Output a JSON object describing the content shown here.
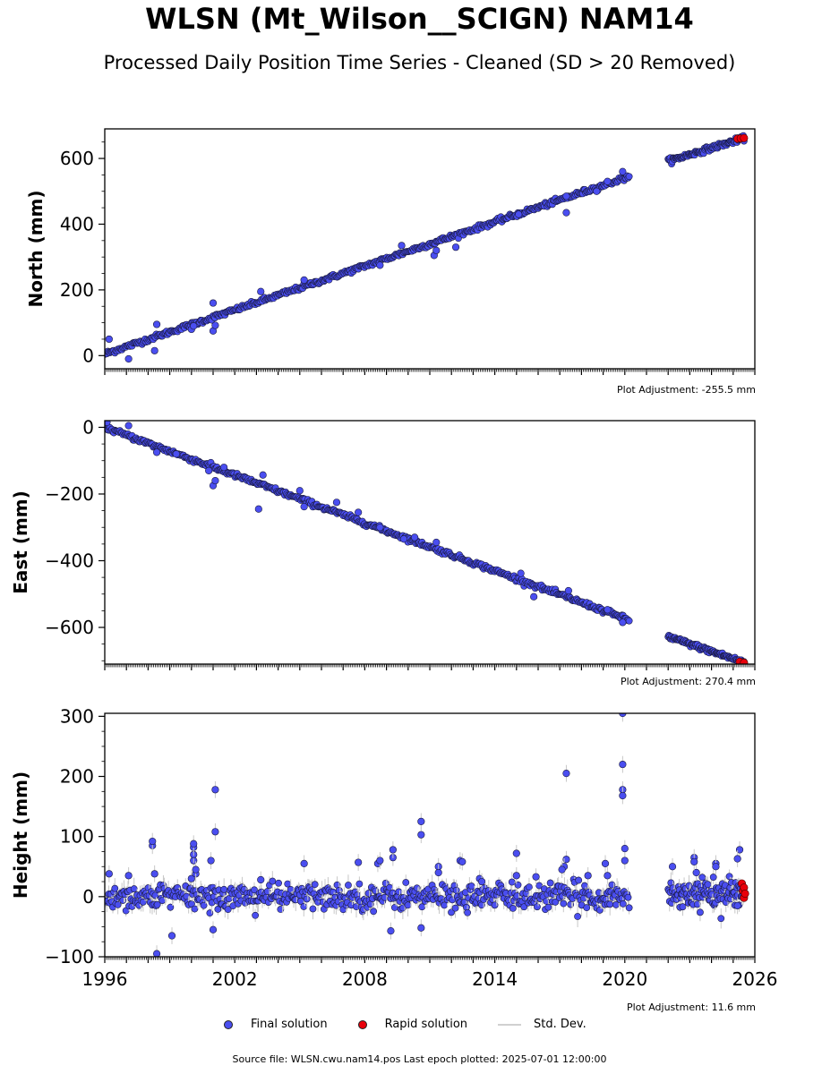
{
  "title": "WLSN (Mt_Wilson__SCIGN) NAM14",
  "subtitle": "Processed Daily Position Time Series - Cleaned (SD > 20 Removed)",
  "legend": {
    "final": "Final solution",
    "rapid": "Rapid solution",
    "std": "Std. Dev."
  },
  "colors": {
    "final": "#4a4ef0",
    "rapid": "#e8000b",
    "edge": "#1a1a40",
    "std": "#c8c8c8"
  },
  "source_text": "Source file: WLSN.cwu.nam14.pos  Last epoch plotted: 2025-07-01 12:00:00",
  "chart_data": [
    {
      "type": "scatter",
      "ylabel": "North (mm)",
      "adjustment": "Plot Adjustment: -255.5 mm",
      "xlim": [
        1996,
        2026
      ],
      "ylim": [
        -40,
        690
      ],
      "yticks": [
        0,
        200,
        400,
        600
      ],
      "xticks": [],
      "trend": {
        "start": [
          1996,
          5
        ],
        "end": [
          2020.2,
          545
        ],
        "gap": [
          2020.2,
          2022.0
        ],
        "start2": [
          2022.0,
          592
        ],
        "end2": [
          2025.5,
          662
        ]
      },
      "outliers": [
        [
          1996.2,
          50
        ],
        [
          1997.1,
          -10
        ],
        [
          1998.3,
          15
        ],
        [
          1998.4,
          95
        ],
        [
          2000.0,
          80
        ],
        [
          2000.1,
          90
        ],
        [
          2001.0,
          75
        ],
        [
          2001.1,
          92
        ],
        [
          2001.0,
          160
        ],
        [
          2003.2,
          195
        ],
        [
          2005.2,
          230
        ],
        [
          2008.7,
          275
        ],
        [
          2009.7,
          335
        ],
        [
          2011.2,
          305
        ],
        [
          2011.3,
          320
        ],
        [
          2012.2,
          330
        ],
        [
          2015.1,
          430
        ],
        [
          2017.3,
          435
        ],
        [
          2017.3,
          485
        ],
        [
          2018.7,
          500
        ],
        [
          2019.2,
          530
        ],
        [
          2019.9,
          560
        ]
      ],
      "rapid": [
        [
          2025.2,
          660
        ],
        [
          2025.35,
          661
        ],
        [
          2025.5,
          662
        ]
      ]
    },
    {
      "type": "scatter",
      "ylabel": "East (mm)",
      "adjustment": "Plot Adjustment: 270.4 mm",
      "xlim": [
        1996,
        2026
      ],
      "ylim": [
        -710,
        20
      ],
      "yticks": [
        0,
        -200,
        -400,
        -600
      ],
      "xticks": [],
      "trend": {
        "start": [
          1996,
          0
        ],
        "end": [
          2020.2,
          -578
        ],
        "gap": [
          2020.2,
          2022.0
        ],
        "start2": [
          2022.0,
          -628
        ],
        "end2": [
          2025.5,
          -705
        ]
      },
      "outliers": [
        [
          1996.1,
          15
        ],
        [
          1997.1,
          5
        ],
        [
          1998.4,
          -75
        ],
        [
          1999.3,
          -80
        ],
        [
          2000.8,
          -130
        ],
        [
          2001.0,
          -175
        ],
        [
          2001.1,
          -160
        ],
        [
          2001.5,
          -120
        ],
        [
          2003.1,
          -245
        ],
        [
          2003.3,
          -143
        ],
        [
          2005.0,
          -190
        ],
        [
          2005.2,
          -238
        ],
        [
          2006.7,
          -225
        ],
        [
          2007.7,
          -255
        ],
        [
          2008.7,
          -300
        ],
        [
          2009.8,
          -335
        ],
        [
          2010.3,
          -330
        ],
        [
          2011.3,
          -345
        ],
        [
          2015.2,
          -438
        ],
        [
          2015.8,
          -508
        ],
        [
          2017.4,
          -490
        ],
        [
          2019.2,
          -547
        ],
        [
          2019.9,
          -585
        ]
      ],
      "rapid": [
        [
          2025.3,
          -703
        ],
        [
          2025.5,
          -706
        ]
      ]
    },
    {
      "type": "scatter",
      "ylabel": "Height (mm)",
      "adjustment": "Plot Adjustment: 11.6 mm",
      "xlim": [
        1996,
        2026
      ],
      "ylim": [
        -100,
        305
      ],
      "yticks": [
        -100,
        0,
        100,
        200,
        300
      ],
      "xticks": [
        "1996",
        "2002",
        "2008",
        "2014",
        "2020",
        "2026"
      ],
      "trend": {
        "start": [
          1996,
          0
        ],
        "end": [
          2020.2,
          0
        ],
        "gap": [
          2020.2,
          2022.0
        ],
        "start2": [
          2022.0,
          5
        ],
        "end2": [
          2025.5,
          5
        ]
      },
      "outliers": [
        [
          1996.2,
          38
        ],
        [
          1997.1,
          35
        ],
        [
          1998.2,
          85
        ],
        [
          1998.2,
          92
        ],
        [
          1998.3,
          38
        ],
        [
          1998.4,
          -95
        ],
        [
          1999.1,
          -65
        ],
        [
          2000.0,
          30
        ],
        [
          2000.1,
          60
        ],
        [
          2000.1,
          70
        ],
        [
          2000.1,
          82
        ],
        [
          2000.1,
          88
        ],
        [
          2000.2,
          38
        ],
        [
          2000.2,
          45
        ],
        [
          2000.9,
          60
        ],
        [
          2001.1,
          178
        ],
        [
          2001.1,
          108
        ],
        [
          2001.0,
          -55
        ],
        [
          2003.2,
          28
        ],
        [
          2005.2,
          55
        ],
        [
          2007.7,
          57
        ],
        [
          2008.6,
          55
        ],
        [
          2008.7,
          60
        ],
        [
          2009.2,
          -57
        ],
        [
          2009.3,
          65
        ],
        [
          2009.3,
          78
        ],
        [
          2010.6,
          125
        ],
        [
          2010.6,
          103
        ],
        [
          2010.6,
          -52
        ],
        [
          2011.4,
          50
        ],
        [
          2011.4,
          40
        ],
        [
          2012.4,
          60
        ],
        [
          2012.5,
          58
        ],
        [
          2013.3,
          30
        ],
        [
          2013.4,
          25
        ],
        [
          2015.0,
          72
        ],
        [
          2015.0,
          35
        ],
        [
          2015.9,
          33
        ],
        [
          2017.3,
          205
        ],
        [
          2017.3,
          62
        ],
        [
          2017.2,
          50
        ],
        [
          2017.1,
          45
        ],
        [
          2018.3,
          35
        ],
        [
          2019.1,
          55
        ],
        [
          2019.2,
          35
        ],
        [
          2019.9,
          305
        ],
        [
          2019.9,
          220
        ],
        [
          2019.9,
          178
        ],
        [
          2019.9,
          168
        ],
        [
          2020.0,
          80
        ],
        [
          2020.0,
          60
        ],
        [
          2022.2,
          50
        ],
        [
          2023.2,
          65
        ],
        [
          2023.3,
          40
        ],
        [
          2023.2,
          58
        ],
        [
          2024.2,
          55
        ],
        [
          2024.2,
          50
        ],
        [
          2025.3,
          78
        ],
        [
          2025.2,
          63
        ],
        [
          2025.2,
          -15
        ]
      ],
      "rapid": [
        [
          2025.4,
          22
        ],
        [
          2025.45,
          10
        ],
        [
          2025.5,
          -2
        ],
        [
          2025.5,
          15
        ],
        [
          2025.55,
          5
        ]
      ]
    }
  ]
}
